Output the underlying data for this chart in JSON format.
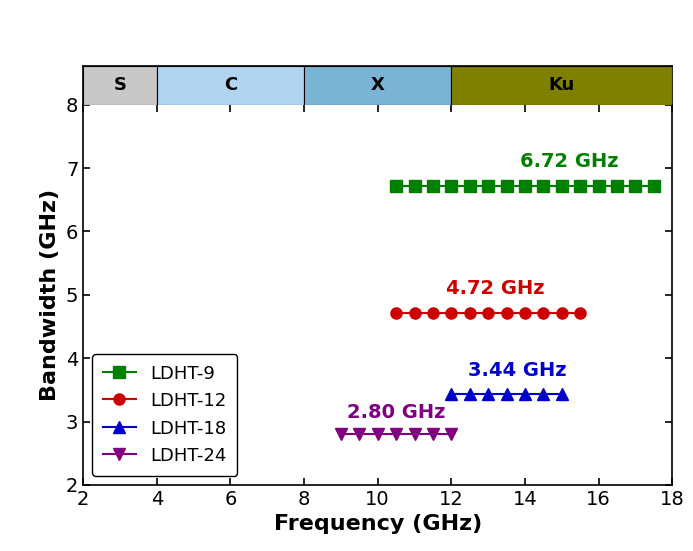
{
  "title": "",
  "xlabel": "Frequency (GHz)",
  "ylabel": "Bandwidth (GHz)",
  "xlim": [
    2,
    18
  ],
  "ylim": [
    2,
    8
  ],
  "xticks": [
    2,
    4,
    6,
    8,
    10,
    12,
    14,
    16,
    18
  ],
  "yticks": [
    2,
    3,
    4,
    5,
    6,
    7,
    8
  ],
  "band_regions": [
    {
      "label": "S",
      "xmin": 2,
      "xmax": 4,
      "color": "#c8c8c8"
    },
    {
      "label": "C",
      "xmin": 4,
      "xmax": 8,
      "color": "#b0d4f0"
    },
    {
      "label": "X",
      "xmin": 8,
      "xmax": 12,
      "color": "#7ab4d4"
    },
    {
      "label": "Ku",
      "xmin": 12,
      "xmax": 18,
      "color": "#808000"
    }
  ],
  "series": [
    {
      "label": "LDHT-9",
      "color": "#008000",
      "marker": "s",
      "x": [
        10.5,
        11.0,
        11.5,
        12.0,
        12.5,
        13.0,
        13.5,
        14.0,
        14.5,
        15.0,
        15.5,
        16.0,
        16.5,
        17.0,
        17.5
      ],
      "y": [
        6.72,
        6.72,
        6.72,
        6.72,
        6.72,
        6.72,
        6.72,
        6.72,
        6.72,
        6.72,
        6.72,
        6.72,
        6.72,
        6.72,
        6.72
      ],
      "annotation": "6.72 GHz",
      "ann_x": 15.2,
      "ann_y": 6.95,
      "ann_color": "#008000"
    },
    {
      "label": "LDHT-12",
      "color": "#cc0000",
      "marker": "o",
      "x": [
        10.5,
        11.0,
        11.5,
        12.0,
        12.5,
        13.0,
        13.5,
        14.0,
        14.5,
        15.0,
        15.5
      ],
      "y": [
        4.72,
        4.72,
        4.72,
        4.72,
        4.72,
        4.72,
        4.72,
        4.72,
        4.72,
        4.72,
        4.72
      ],
      "annotation": "4.72 GHz",
      "ann_x": 13.2,
      "ann_y": 4.95,
      "ann_color": "#cc0000"
    },
    {
      "label": "LDHT-18",
      "color": "#0000cc",
      "marker": "^",
      "x": [
        12.0,
        12.5,
        13.0,
        13.5,
        14.0,
        14.5,
        15.0
      ],
      "y": [
        3.44,
        3.44,
        3.44,
        3.44,
        3.44,
        3.44,
        3.44
      ],
      "annotation": "3.44 GHz",
      "ann_x": 13.8,
      "ann_y": 3.65,
      "ann_color": "#0000cc"
    },
    {
      "label": "LDHT-24",
      "color": "#800080",
      "marker": "v",
      "x": [
        9.0,
        9.5,
        10.0,
        10.5,
        11.0,
        11.5,
        12.0
      ],
      "y": [
        2.8,
        2.8,
        2.8,
        2.8,
        2.8,
        2.8,
        2.8
      ],
      "annotation": "2.80 GHz",
      "ann_x": 10.5,
      "ann_y": 3.0,
      "ann_color": "#800080"
    }
  ],
  "xlabel_fontsize": 16,
  "ylabel_fontsize": 16,
  "tick_fontsize": 14,
  "legend_fontsize": 13,
  "annotation_fontsize": 14,
  "band_label_fontsize": 13,
  "marker_size": 8,
  "linewidth": 1.5,
  "background_color": "#ffffff"
}
